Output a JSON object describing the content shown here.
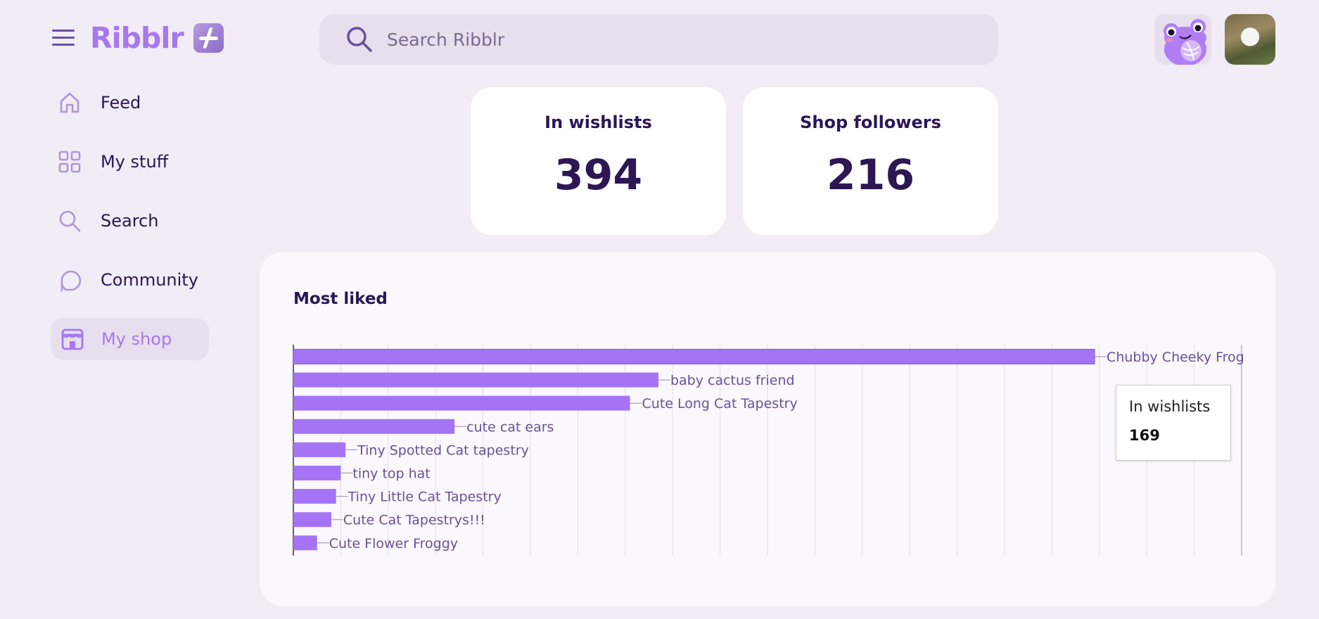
{
  "app": {
    "name": "Ribblr"
  },
  "search": {
    "placeholder": "Search Ribblr"
  },
  "sidebar": {
    "items": [
      {
        "label": "Feed",
        "icon": "home-icon"
      },
      {
        "label": "My stuff",
        "icon": "grid-icon"
      },
      {
        "label": "Search",
        "icon": "search-icon"
      },
      {
        "label": "Community",
        "icon": "chat-bubble-icon"
      },
      {
        "label": "My shop",
        "icon": "shop-icon",
        "active": true
      }
    ]
  },
  "stats": [
    {
      "title": "In wishlists",
      "value": "394"
    },
    {
      "title": "Shop followers",
      "value": "216"
    }
  ],
  "chart": {
    "title": "Most liked",
    "tooltip": {
      "label": "In wishlists",
      "value": "169"
    }
  },
  "chart_data": {
    "type": "bar",
    "orientation": "horizontal",
    "title": "Most liked",
    "categories": [
      "Chubby Cheeky Frog",
      "baby cactus friend",
      "Cute Long Cat Tapestry",
      "cute cat ears",
      "Tiny Spotted Cat tapestry",
      "tiny top hat",
      "Tiny Little Cat Tapestry",
      "Cute Cat Tapestrys!!!",
      "Cute Flower Froggy"
    ],
    "series": [
      {
        "name": "In wishlists",
        "values": [
          169,
          77,
          71,
          34,
          11,
          10,
          9,
          8,
          5
        ]
      }
    ],
    "xlim": [
      0,
      200
    ],
    "grid": true,
    "legend": "none",
    "bar_color": "#a574f6"
  },
  "colors": {
    "accent": "#a678ee",
    "text": "#2c1654",
    "background": "#f1ecf5"
  }
}
